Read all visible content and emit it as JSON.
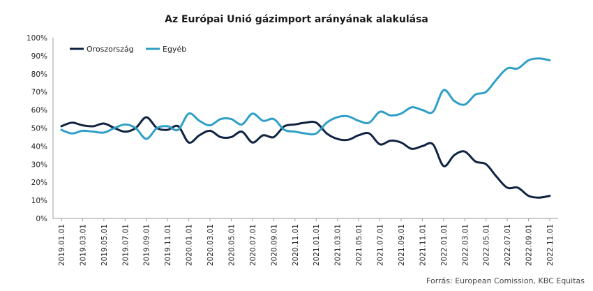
{
  "chart_data": {
    "type": "line",
    "title": "Az Európai Unió gázimport arányának alakulása",
    "source": "Forrás: European Comission, KBC Equitas",
    "legend_position": "top-left",
    "grid": false,
    "ylim": [
      0,
      100
    ],
    "y_ticks": [
      "0%",
      "10%",
      "20%",
      "30%",
      "40%",
      "50%",
      "60%",
      "70%",
      "80%",
      "90%",
      "100%"
    ],
    "x": [
      "2019.01.01",
      "2019.02.01",
      "2019.03.01",
      "2019.04.01",
      "2019.05.01",
      "2019.06.01",
      "2019.07.01",
      "2019.08.01",
      "2019.09.01",
      "2019.10.01",
      "2019.11.01",
      "2019.12.01",
      "2020.01.01",
      "2020.02.01",
      "2020.03.01",
      "2020.04.01",
      "2020.05.01",
      "2020.06.01",
      "2020.07.01",
      "2020.08.01",
      "2020.09.01",
      "2020.10.01",
      "2020.11.01",
      "2020.12.01",
      "2021.01.01",
      "2021.02.01",
      "2021.03.01",
      "2021.04.01",
      "2021.05.01",
      "2021.06.01",
      "2021.07.01",
      "2021.08.01",
      "2021.09.01",
      "2021.10.01",
      "2021.11.01",
      "2021.12.01",
      "2022.01.01",
      "2022.02.01",
      "2022.03.01",
      "2022.04.01",
      "2022.05.01",
      "2022.06.01",
      "2022.07.01",
      "2022.08.01",
      "2022.09.01",
      "2022.10.01",
      "2022.11.01"
    ],
    "x_ticks": [
      "2019.01.01",
      "2019.03.01",
      "2019.05.01",
      "2019.07.01",
      "2019.09.01",
      "2019.11.01",
      "2020.01.01",
      "2020.03.01",
      "2020.05.01",
      "2020.07.01",
      "2020.09.01",
      "2020.11.01",
      "2021.01.01",
      "2021.03.01",
      "2021.05.01",
      "2021.07.01",
      "2021.09.01",
      "2021.11.01",
      "2022.01.01",
      "2022.03.01",
      "2022.05.01",
      "2022.07.01",
      "2022.09.01",
      "2022.11.01"
    ],
    "series": [
      {
        "name": "Oroszország",
        "color": "#0f2341",
        "values": [
          51,
          53,
          51.5,
          51,
          52.5,
          50,
          48,
          50,
          56,
          50,
          49,
          51,
          42,
          46,
          48.5,
          45,
          45,
          48,
          42,
          46,
          45,
          51,
          52,
          53,
          53,
          47,
          44,
          43.5,
          46,
          47,
          41,
          43,
          42,
          38.5,
          40,
          41,
          29,
          35,
          37,
          31.5,
          30,
          23,
          17,
          17,
          12.5,
          11.5,
          12.5
        ]
      },
      {
        "name": "Egyéb",
        "color": "#2f9fc8",
        "values": [
          49,
          47,
          48.5,
          48,
          47.5,
          50,
          52,
          50,
          44,
          50,
          51,
          49,
          58,
          54,
          51.5,
          55,
          55,
          52,
          58,
          54,
          55,
          49,
          48,
          47,
          47,
          53,
          56,
          56.5,
          54,
          53,
          59,
          57,
          58,
          61.5,
          60,
          59,
          71,
          65,
          63,
          68.5,
          70,
          77,
          83,
          83,
          87.5,
          88.5,
          87.5
        ]
      }
    ]
  }
}
